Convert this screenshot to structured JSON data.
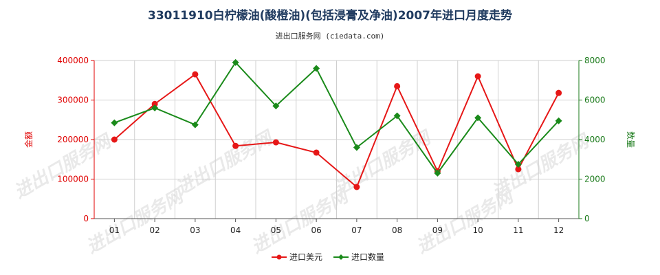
{
  "chart_data": {
    "type": "line",
    "title": "33011910白柠檬油(酸橙油)(包括浸膏及净油)2007年进口月度走势",
    "subtitle": "进出口服务网 (ciedata.com)",
    "categories": [
      "01",
      "02",
      "03",
      "04",
      "05",
      "06",
      "07",
      "08",
      "09",
      "10",
      "11",
      "12"
    ],
    "y_left": {
      "label": "金额",
      "ylim": [
        0,
        400000
      ],
      "ticks": [
        0,
        100000,
        200000,
        300000,
        400000
      ],
      "color": "#e00000"
    },
    "y_right": {
      "label": "数量",
      "ylim": [
        0,
        8000
      ],
      "ticks": [
        0,
        2000,
        4000,
        6000,
        8000
      ],
      "color": "#1a7a1a"
    },
    "series": [
      {
        "name": "进口美元",
        "axis": "left",
        "color": "#e61717",
        "marker": "circle",
        "values": [
          200000,
          290000,
          365000,
          184000,
          193000,
          167000,
          80000,
          335000,
          120000,
          360000,
          125000,
          318000
        ]
      },
      {
        "name": "进口数量",
        "axis": "right",
        "color": "#1a8a1a",
        "marker": "diamond",
        "values": [
          4850,
          5600,
          4750,
          7900,
          5700,
          7600,
          3600,
          5200,
          2300,
          5100,
          2750,
          4950
        ]
      }
    ],
    "grid": true,
    "legend": "bottom-center",
    "watermark": "进出口服务网"
  }
}
